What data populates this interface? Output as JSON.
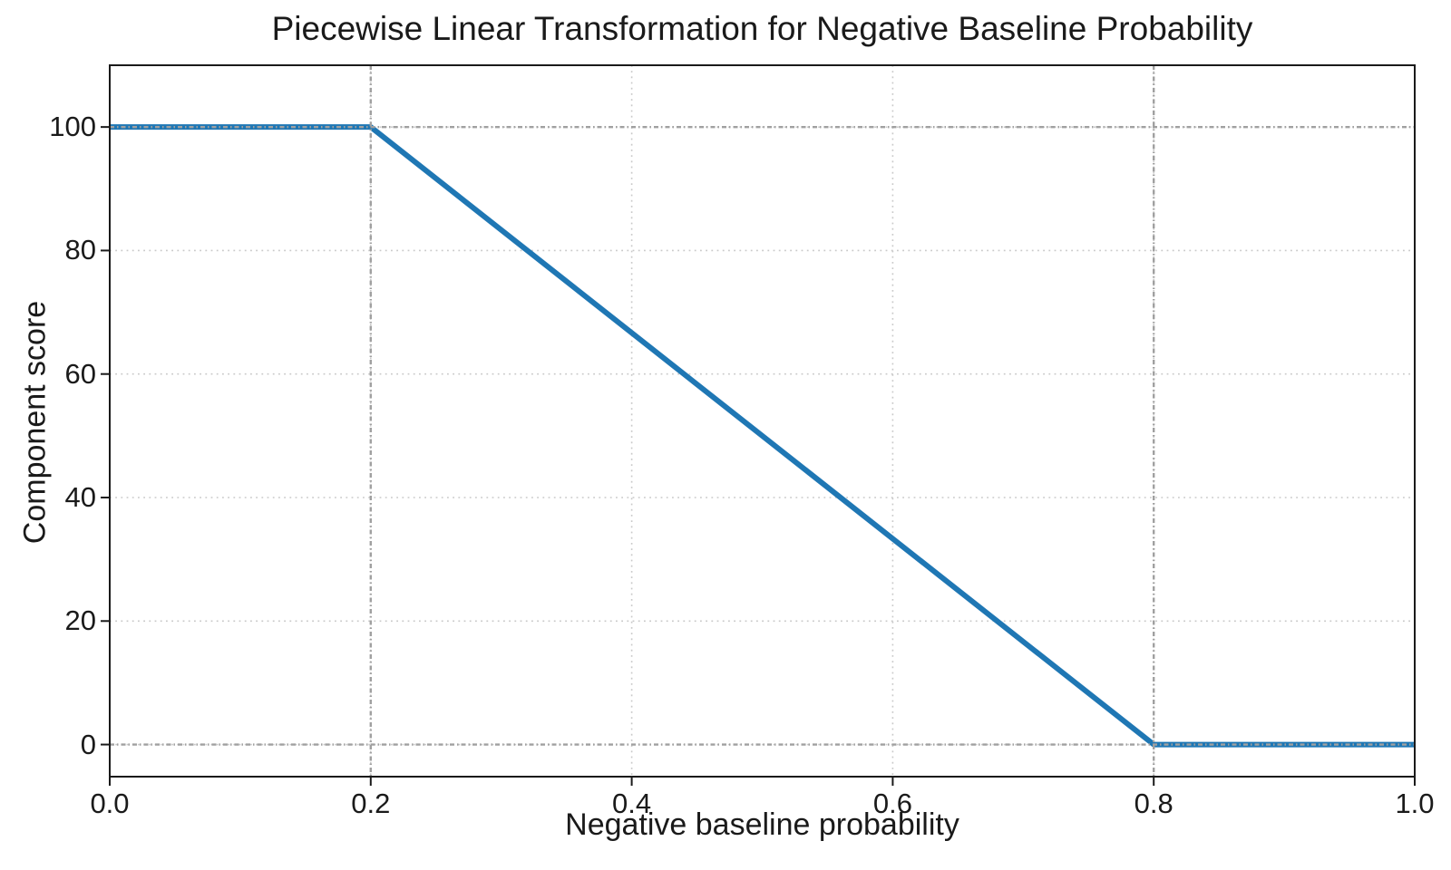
{
  "chart_data": {
    "type": "line",
    "title": "Piecewise Linear Transformation for Negative Baseline Probability",
    "xlabel": "Negative baseline probability",
    "ylabel": "Component score",
    "xlim": [
      0,
      1
    ],
    "ylim": [
      -5.2,
      110
    ],
    "xticks": {
      "values": [
        0.0,
        0.2,
        0.4,
        0.6,
        0.8,
        1.0
      ],
      "labels": [
        "0.0",
        "0.2",
        "0.4",
        "0.6",
        "0.8",
        "1.0"
      ]
    },
    "yticks": {
      "values": [
        0,
        20,
        40,
        60,
        80,
        100
      ],
      "labels": [
        "0",
        "20",
        "40",
        "60",
        "80",
        "100"
      ]
    },
    "series": [
      {
        "name": "component-score",
        "color": "#1f77b4",
        "linewidth": 6,
        "points": [
          [
            0.0,
            100
          ],
          [
            0.2,
            100
          ],
          [
            0.8,
            0
          ],
          [
            1.0,
            0
          ]
        ]
      }
    ],
    "grid": {
      "on": true,
      "style": "dotted",
      "color": "#c9c9c9"
    },
    "reference_lines": {
      "x": [
        0.2,
        0.8
      ],
      "y": [
        0,
        100
      ],
      "style": "dash-dot",
      "color": "#a0a0a0"
    },
    "breakpoints": {
      "x_flat_high_until": 0.2,
      "x_reaches_zero_at": 0.8,
      "high_value": 100,
      "low_value": 0
    },
    "spine_color": "#1a1a1a",
    "text_color": "#1a1a1a",
    "legend": "none"
  }
}
